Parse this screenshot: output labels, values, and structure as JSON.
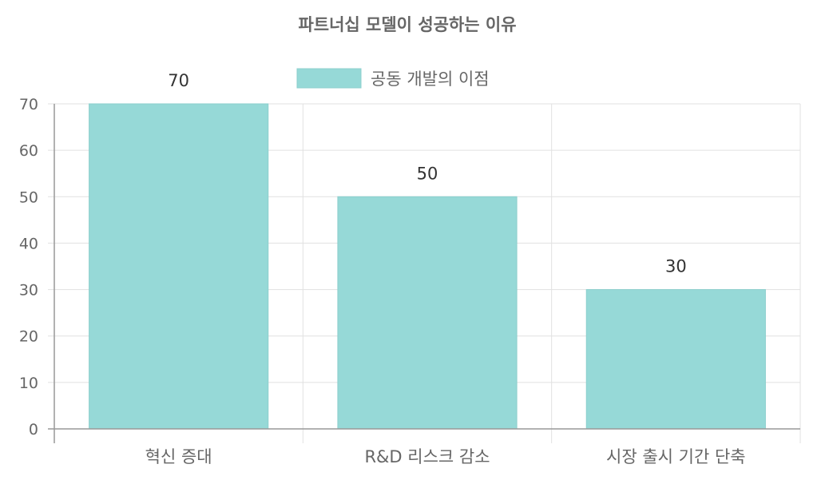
{
  "chart_data": {
    "type": "bar",
    "title": "파트너십 모델이 성공하는 이유",
    "categories": [
      "혁신 증대",
      "R&D 리스크 감소",
      "시장 출시 기간 단축"
    ],
    "series": [
      {
        "name": "공동 개발의 이점",
        "values": [
          70,
          50,
          30
        ]
      }
    ],
    "ylim": [
      0,
      70
    ],
    "yticks": [
      "0",
      "10",
      "20",
      "30",
      "40",
      "50",
      "60",
      "70"
    ],
    "data_labels": [
      "70",
      "50",
      "30"
    ],
    "grid": true,
    "legend_position": "top",
    "colors": {
      "bar_fill": "#96d9d7",
      "bar_stroke": "#8ccfcd",
      "grid": "#e1e1e1",
      "axis": "#999999"
    }
  }
}
